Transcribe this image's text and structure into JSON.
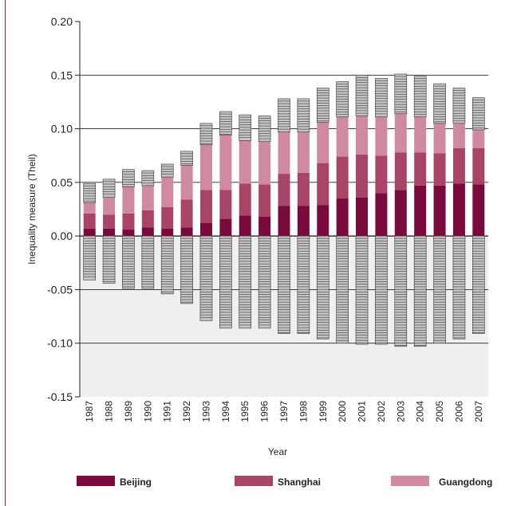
{
  "chart_data": {
    "type": "bar",
    "stacked": true,
    "title": "",
    "xlabel": "Year",
    "ylabel": "Inequality measure (Theil)",
    "ylim": [
      -0.15,
      0.2
    ],
    "yticks": [
      0.2,
      0.15,
      0.1,
      0.05,
      0.0,
      -0.05,
      -0.1,
      -0.15
    ],
    "ytick_labels": [
      "0.20",
      "0.15",
      "0.10",
      "0.05",
      "0.00",
      "-0.05",
      "-0.10",
      "-0.15"
    ],
    "grid": "horizontal",
    "negative_region_shaded": true,
    "categories": [
      "1987",
      "1988",
      "1989",
      "1990",
      "1991",
      "1992",
      "1993",
      "1994",
      "1995",
      "1996",
      "1997",
      "1998",
      "1999",
      "2000",
      "2001",
      "2002",
      "2003",
      "2004",
      "2005",
      "2006",
      "2007"
    ],
    "series": [
      {
        "name": "Beijing",
        "color": "#7a0a3c",
        "values": [
          0.007,
          0.007,
          0.006,
          0.008,
          0.007,
          0.008,
          0.012,
          0.016,
          0.019,
          0.018,
          0.028,
          0.028,
          0.029,
          0.035,
          0.036,
          0.04,
          0.043,
          0.047,
          0.047,
          0.049,
          0.048
        ]
      },
      {
        "name": "Shanghai",
        "color": "#a84468",
        "values": [
          0.014,
          0.013,
          0.015,
          0.016,
          0.02,
          0.026,
          0.031,
          0.027,
          0.03,
          0.03,
          0.03,
          0.031,
          0.039,
          0.039,
          0.04,
          0.035,
          0.035,
          0.031,
          0.03,
          0.033,
          0.034
        ]
      },
      {
        "name": "Guangdong",
        "color": "#cf8aa0",
        "values": [
          0.01,
          0.016,
          0.025,
          0.023,
          0.028,
          0.032,
          0.042,
          0.051,
          0.04,
          0.04,
          0.039,
          0.038,
          0.038,
          0.037,
          0.036,
          0.036,
          0.036,
          0.033,
          0.028,
          0.023,
          0.017
        ]
      }
    ],
    "other_positive": [
      0.018,
      0.017,
      0.016,
      0.014,
      0.012,
      0.013,
      0.02,
      0.022,
      0.024,
      0.024,
      0.031,
      0.031,
      0.032,
      0.033,
      0.038,
      0.036,
      0.037,
      0.038,
      0.037,
      0.033,
      0.03
    ],
    "other_negative": [
      -0.041,
      -0.044,
      -0.049,
      -0.049,
      -0.054,
      -0.063,
      -0.079,
      -0.086,
      -0.086,
      -0.086,
      -0.091,
      -0.091,
      -0.096,
      -0.1,
      -0.101,
      -0.101,
      -0.103,
      -0.103,
      -0.1,
      -0.096,
      -0.091
    ],
    "other_color": "#c4c4c4",
    "legend": {
      "position": "bottom",
      "entries": [
        {
          "label": "Beijing",
          "color": "#7a0a3c"
        },
        {
          "label": "Shanghai",
          "color": "#a84468"
        },
        {
          "label": "Guangdong",
          "color": "#cf8aa0"
        }
      ]
    }
  }
}
